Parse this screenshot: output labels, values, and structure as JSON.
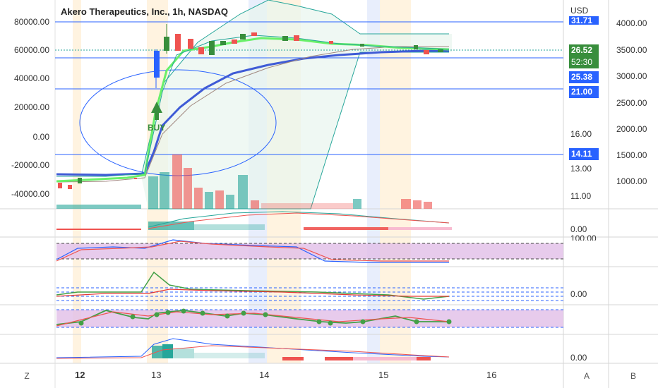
{
  "header": {
    "title": "Akero Therapeutics, Inc., 1h, NASDAQ",
    "currency": "USD"
  },
  "left_axis": [
    "80000.00",
    "60000.00",
    "40000.00",
    "20000.00",
    "0.00",
    "-20000.00",
    "-40000.00"
  ],
  "mid_axis": [
    "16.00",
    "13.00",
    "11.00"
  ],
  "right_axis": [
    "4000.00",
    "3500.00",
    "3000.00",
    "2500.00",
    "2000.00",
    "1500.00",
    "1000.00"
  ],
  "price_tags": {
    "top": "31.71",
    "last": "26.52",
    "countdown": "52:30",
    "mid": "25.38",
    "level": "21.00",
    "low": "14.11"
  },
  "pane_labels": {
    "volume_osc": "0.00",
    "rsi_top": "100.00",
    "cci": "0.00",
    "macd": "0.00"
  },
  "signal": "BUY",
  "x_axis": [
    "12",
    "13",
    "14",
    "15",
    "16"
  ],
  "corner_buttons": [
    "Z",
    "A",
    "B"
  ],
  "colors": {
    "up": "#26a69a",
    "down": "#ef5350",
    "ma_fast": "#69f069",
    "ma_slow": "#3f5bd6",
    "tag_blue": "#2962ff",
    "tag_green": "#388e3c",
    "rsi_band": "#e1bee7"
  }
}
